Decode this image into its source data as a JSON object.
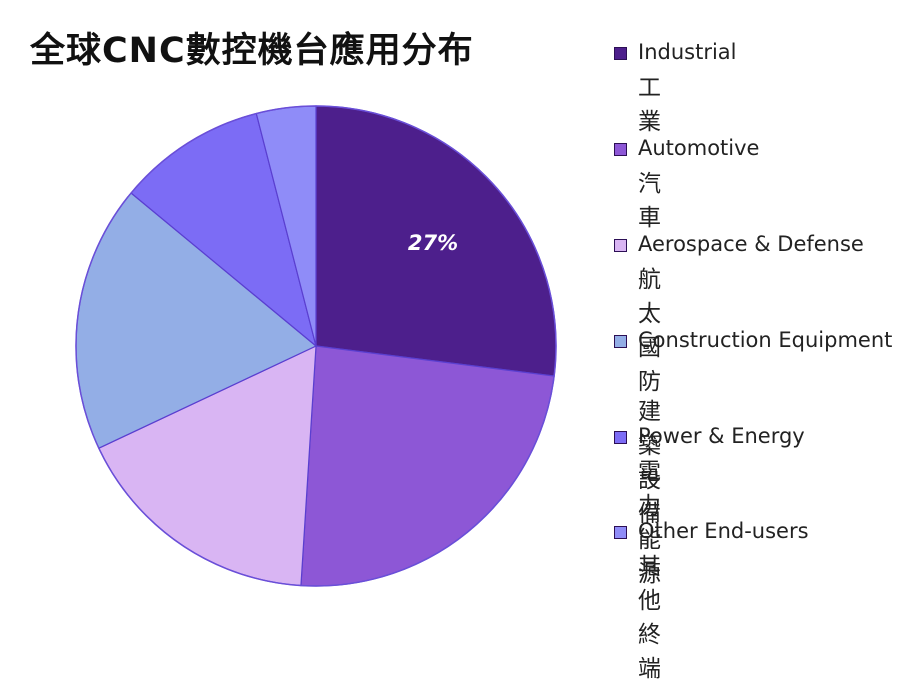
{
  "title": "全球CNC數控機台應用分布",
  "chart_data": {
    "type": "pie",
    "title": "全球CNC數控機台應用分布",
    "labels": [
      {
        "en": "Industrial",
        "zh": "工業"
      },
      {
        "en": "Automotive",
        "zh": "汽車"
      },
      {
        "en": "Aerospace & Defense",
        "zh": "航太國防"
      },
      {
        "en": "Construction Equipment",
        "zh": "建築設備"
      },
      {
        "en": "Power & Energy",
        "zh": "電力能源"
      },
      {
        "en": "Other End-users",
        "zh": "其他終端"
      }
    ],
    "values": [
      27,
      24,
      17,
      18,
      10,
      4
    ],
    "data_labels": [
      "27%",
      "",
      "",
      "",
      "",
      ""
    ],
    "colors": [
      "#4d1f8c",
      "#8d57d6",
      "#d9b5f3",
      "#93aee6",
      "#7c6cf5",
      "#8f8cf8"
    ],
    "legend_position": "right",
    "start_angle_deg": 0,
    "direction": "clockwise"
  }
}
